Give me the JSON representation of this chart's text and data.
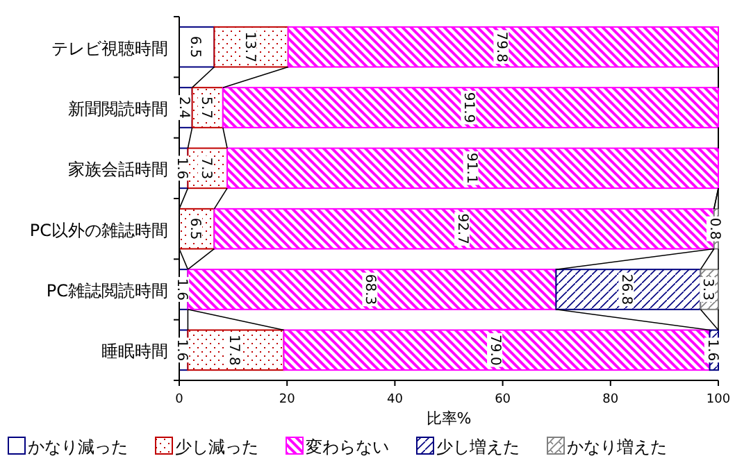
{
  "chart_data": {
    "type": "bar",
    "orientation": "horizontal",
    "stacked": true,
    "xlabel": "比率%",
    "categories": [
      "テレビ視聴時間",
      "新聞閲読時間",
      "家族会話時間",
      "PC以外の雑誌時間",
      "PC雑誌閲読時間",
      "睡眠時間"
    ],
    "series": [
      {
        "name": "かなり減った",
        "color": "#000080",
        "values": [
          6.5,
          2.4,
          1.6,
          null,
          1.6,
          1.6
        ],
        "value_labels": [
          "6.5",
          "2.4",
          "1.6",
          null,
          "1.6",
          "1.6"
        ]
      },
      {
        "name": "少し減った",
        "color": "#c00000",
        "values": [
          13.7,
          5.7,
          7.3,
          6.5,
          null,
          17.8
        ],
        "value_labels": [
          "13.7",
          "5.7",
          "7.3",
          "6.5",
          null,
          "17.8"
        ]
      },
      {
        "name": "変わらない",
        "color": "#ff00ff",
        "values": [
          79.8,
          91.9,
          91.1,
          92.7,
          68.3,
          79.0
        ],
        "value_labels": [
          "79.8",
          "91.9",
          "91.1",
          "92.7",
          "68.3",
          "79.0"
        ]
      },
      {
        "name": "少し増えた",
        "color": "#000080",
        "values": [
          null,
          null,
          null,
          null,
          26.8,
          1.6
        ],
        "value_labels": [
          null,
          null,
          null,
          null,
          "26.8",
          "1.6"
        ]
      },
      {
        "name": "かなり増えた",
        "color": "#808080",
        "values": [
          null,
          null,
          null,
          0.8,
          3.3,
          null
        ],
        "value_labels": [
          null,
          null,
          null,
          "0.8",
          "3.3",
          null
        ]
      }
    ],
    "xlim": [
      0,
      100
    ],
    "xticks": [
      0,
      20,
      40,
      60,
      80,
      100
    ],
    "grid": false,
    "legend": "bottom"
  }
}
